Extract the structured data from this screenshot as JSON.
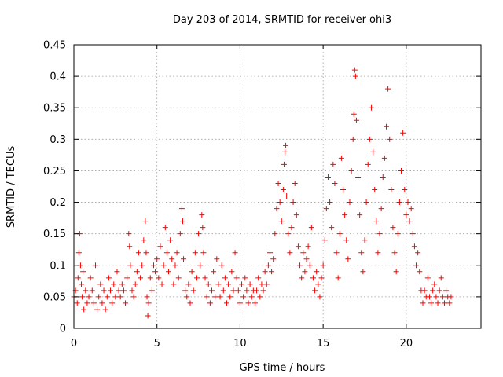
{
  "chart_data": {
    "type": "scatter",
    "title": "Day 203 of 2014, SRMTID for receiver ohi3",
    "xlabel": "GPS time / hours",
    "ylabel": "SRMTID / TECUs",
    "xlim": [
      0,
      24.5
    ],
    "ylim": [
      0,
      0.45
    ],
    "xticks": [
      0,
      5,
      10,
      15,
      20
    ],
    "xtick_labels": [
      "0",
      "5",
      "10",
      "15",
      "20"
    ],
    "yticks": [
      0,
      0.05,
      0.1,
      0.15,
      0.2,
      0.25,
      0.3,
      0.35,
      0.4,
      0.45
    ],
    "ytick_labels": [
      "0",
      "0.05",
      "0.1",
      "0.15",
      "0.2",
      "0.25",
      "0.3",
      "0.35",
      "0.4",
      "0.45"
    ],
    "grid": true,
    "marker": "+",
    "color": "#ff0000",
    "series": [
      {
        "name": "SRMTID",
        "points": [
          [
            0.0,
            0.05
          ],
          [
            0.1,
            0.06
          ],
          [
            0.2,
            0.04
          ],
          [
            0.25,
            0.08
          ],
          [
            0.3,
            0.12
          ],
          [
            0.35,
            0.15
          ],
          [
            0.4,
            0.1
          ],
          [
            0.45,
            0.07
          ],
          [
            0.5,
            0.05
          ],
          [
            0.55,
            0.09
          ],
          [
            0.6,
            0.03
          ],
          [
            0.7,
            0.06
          ],
          [
            0.8,
            0.04
          ],
          [
            0.9,
            0.05
          ],
          [
            1.0,
            0.08
          ],
          [
            1.1,
            0.06
          ],
          [
            1.2,
            0.04
          ],
          [
            1.3,
            0.1
          ],
          [
            1.4,
            0.03
          ],
          [
            1.5,
            0.05
          ],
          [
            1.6,
            0.07
          ],
          [
            1.7,
            0.04
          ],
          [
            1.8,
            0.06
          ],
          [
            1.9,
            0.03
          ],
          [
            2.0,
            0.05
          ],
          [
            2.1,
            0.08
          ],
          [
            2.2,
            0.06
          ],
          [
            2.3,
            0.04
          ],
          [
            2.4,
            0.07
          ],
          [
            2.5,
            0.05
          ],
          [
            2.6,
            0.09
          ],
          [
            2.7,
            0.06
          ],
          [
            2.8,
            0.05
          ],
          [
            2.9,
            0.07
          ],
          [
            3.0,
            0.06
          ],
          [
            3.1,
            0.04
          ],
          [
            3.2,
            0.08
          ],
          [
            3.3,
            0.15
          ],
          [
            3.35,
            0.13
          ],
          [
            3.4,
            0.1
          ],
          [
            3.5,
            0.06
          ],
          [
            3.6,
            0.05
          ],
          [
            3.7,
            0.07
          ],
          [
            3.8,
            0.09
          ],
          [
            3.9,
            0.12
          ],
          [
            4.0,
            0.08
          ],
          [
            4.1,
            0.1
          ],
          [
            4.2,
            0.14
          ],
          [
            4.3,
            0.17
          ],
          [
            4.35,
            0.12
          ],
          [
            4.4,
            0.05
          ],
          [
            4.45,
            0.02
          ],
          [
            4.5,
            0.04
          ],
          [
            4.6,
            0.08
          ],
          [
            4.7,
            0.06
          ],
          [
            4.8,
            0.1
          ],
          [
            4.9,
            0.09
          ],
          [
            5.0,
            0.11
          ],
          [
            5.1,
            0.08
          ],
          [
            5.2,
            0.13
          ],
          [
            5.3,
            0.07
          ],
          [
            5.4,
            0.1
          ],
          [
            5.5,
            0.16
          ],
          [
            5.6,
            0.12
          ],
          [
            5.7,
            0.09
          ],
          [
            5.8,
            0.14
          ],
          [
            5.9,
            0.11
          ],
          [
            6.0,
            0.07
          ],
          [
            6.1,
            0.1
          ],
          [
            6.2,
            0.12
          ],
          [
            6.3,
            0.08
          ],
          [
            6.4,
            0.15
          ],
          [
            6.5,
            0.19
          ],
          [
            6.55,
            0.17
          ],
          [
            6.6,
            0.11
          ],
          [
            6.7,
            0.06
          ],
          [
            6.8,
            0.05
          ],
          [
            6.9,
            0.07
          ],
          [
            7.0,
            0.04
          ],
          [
            7.1,
            0.09
          ],
          [
            7.2,
            0.06
          ],
          [
            7.3,
            0.12
          ],
          [
            7.4,
            0.08
          ],
          [
            7.5,
            0.15
          ],
          [
            7.6,
            0.1
          ],
          [
            7.7,
            0.18
          ],
          [
            7.75,
            0.16
          ],
          [
            7.8,
            0.12
          ],
          [
            7.9,
            0.08
          ],
          [
            8.0,
            0.05
          ],
          [
            8.1,
            0.07
          ],
          [
            8.2,
            0.04
          ],
          [
            8.3,
            0.06
          ],
          [
            8.4,
            0.09
          ],
          [
            8.5,
            0.05
          ],
          [
            8.6,
            0.11
          ],
          [
            8.7,
            0.07
          ],
          [
            8.8,
            0.05
          ],
          [
            8.9,
            0.1
          ],
          [
            9.0,
            0.06
          ],
          [
            9.1,
            0.08
          ],
          [
            9.2,
            0.04
          ],
          [
            9.3,
            0.07
          ],
          [
            9.4,
            0.05
          ],
          [
            9.5,
            0.09
          ],
          [
            9.6,
            0.06
          ],
          [
            9.7,
            0.12
          ],
          [
            9.8,
            0.08
          ],
          [
            9.9,
            0.06
          ],
          [
            10.0,
            0.04
          ],
          [
            10.1,
            0.07
          ],
          [
            10.2,
            0.05
          ],
          [
            10.3,
            0.08
          ],
          [
            10.4,
            0.06
          ],
          [
            10.5,
            0.04
          ],
          [
            10.6,
            0.07
          ],
          [
            10.7,
            0.05
          ],
          [
            10.8,
            0.06
          ],
          [
            10.9,
            0.04
          ],
          [
            11.0,
            0.06
          ],
          [
            11.1,
            0.08
          ],
          [
            11.2,
            0.05
          ],
          [
            11.3,
            0.07
          ],
          [
            11.4,
            0.06
          ],
          [
            11.5,
            0.09
          ],
          [
            11.6,
            0.07
          ],
          [
            11.7,
            0.1
          ],
          [
            11.8,
            0.12
          ],
          [
            11.9,
            0.09
          ],
          [
            12.0,
            0.11
          ],
          [
            12.1,
            0.15
          ],
          [
            12.2,
            0.19
          ],
          [
            12.3,
            0.23
          ],
          [
            12.4,
            0.2
          ],
          [
            12.5,
            0.17
          ],
          [
            12.6,
            0.22
          ],
          [
            12.65,
            0.26
          ],
          [
            12.7,
            0.28
          ],
          [
            12.75,
            0.29
          ],
          [
            12.8,
            0.21
          ],
          [
            12.9,
            0.15
          ],
          [
            13.0,
            0.12
          ],
          [
            13.1,
            0.16
          ],
          [
            13.2,
            0.2
          ],
          [
            13.3,
            0.23
          ],
          [
            13.4,
            0.18
          ],
          [
            13.5,
            0.13
          ],
          [
            13.6,
            0.1
          ],
          [
            13.7,
            0.08
          ],
          [
            13.8,
            0.12
          ],
          [
            13.9,
            0.09
          ],
          [
            14.0,
            0.11
          ],
          [
            14.1,
            0.13
          ],
          [
            14.2,
            0.1
          ],
          [
            14.3,
            0.16
          ],
          [
            14.4,
            0.08
          ],
          [
            14.5,
            0.06
          ],
          [
            14.6,
            0.09
          ],
          [
            14.7,
            0.07
          ],
          [
            14.8,
            0.05
          ],
          [
            14.9,
            0.08
          ],
          [
            15.0,
            0.1
          ],
          [
            15.1,
            0.14
          ],
          [
            15.2,
            0.19
          ],
          [
            15.3,
            0.24
          ],
          [
            15.4,
            0.2
          ],
          [
            15.5,
            0.16
          ],
          [
            15.6,
            0.26
          ],
          [
            15.7,
            0.23
          ],
          [
            15.8,
            0.12
          ],
          [
            15.9,
            0.08
          ],
          [
            16.0,
            0.15
          ],
          [
            16.1,
            0.27
          ],
          [
            16.2,
            0.22
          ],
          [
            16.3,
            0.18
          ],
          [
            16.4,
            0.14
          ],
          [
            16.5,
            0.11
          ],
          [
            16.6,
            0.2
          ],
          [
            16.7,
            0.25
          ],
          [
            16.8,
            0.3
          ],
          [
            16.85,
            0.34
          ],
          [
            16.9,
            0.41
          ],
          [
            16.95,
            0.4
          ],
          [
            17.0,
            0.33
          ],
          [
            17.1,
            0.24
          ],
          [
            17.2,
            0.18
          ],
          [
            17.3,
            0.12
          ],
          [
            17.4,
            0.09
          ],
          [
            17.5,
            0.14
          ],
          [
            17.6,
            0.2
          ],
          [
            17.7,
            0.26
          ],
          [
            17.8,
            0.3
          ],
          [
            17.9,
            0.35
          ],
          [
            18.0,
            0.28
          ],
          [
            18.1,
            0.22
          ],
          [
            18.2,
            0.17
          ],
          [
            18.3,
            0.12
          ],
          [
            18.4,
            0.15
          ],
          [
            18.5,
            0.19
          ],
          [
            18.6,
            0.24
          ],
          [
            18.7,
            0.27
          ],
          [
            18.8,
            0.32
          ],
          [
            18.9,
            0.38
          ],
          [
            19.0,
            0.3
          ],
          [
            19.1,
            0.22
          ],
          [
            19.2,
            0.16
          ],
          [
            19.3,
            0.12
          ],
          [
            19.4,
            0.09
          ],
          [
            19.5,
            0.15
          ],
          [
            19.6,
            0.2
          ],
          [
            19.7,
            0.25
          ],
          [
            19.8,
            0.31
          ],
          [
            19.9,
            0.22
          ],
          [
            20.0,
            0.18
          ],
          [
            20.1,
            0.2
          ],
          [
            20.2,
            0.17
          ],
          [
            20.3,
            0.19
          ],
          [
            20.4,
            0.15
          ],
          [
            20.5,
            0.13
          ],
          [
            20.6,
            0.1
          ],
          [
            20.7,
            0.12
          ],
          [
            20.8,
            0.09
          ],
          [
            20.9,
            0.06
          ],
          [
            21.0,
            0.04
          ],
          [
            21.1,
            0.06
          ],
          [
            21.2,
            0.05
          ],
          [
            21.3,
            0.08
          ],
          [
            21.4,
            0.05
          ],
          [
            21.5,
            0.04
          ],
          [
            21.6,
            0.06
          ],
          [
            21.7,
            0.07
          ],
          [
            21.8,
            0.05
          ],
          [
            21.9,
            0.04
          ],
          [
            22.0,
            0.06
          ],
          [
            22.1,
            0.08
          ],
          [
            22.2,
            0.05
          ],
          [
            22.3,
            0.04
          ],
          [
            22.4,
            0.06
          ],
          [
            22.5,
            0.05
          ],
          [
            22.6,
            0.04
          ],
          [
            22.7,
            0.05
          ]
        ]
      }
    ]
  }
}
